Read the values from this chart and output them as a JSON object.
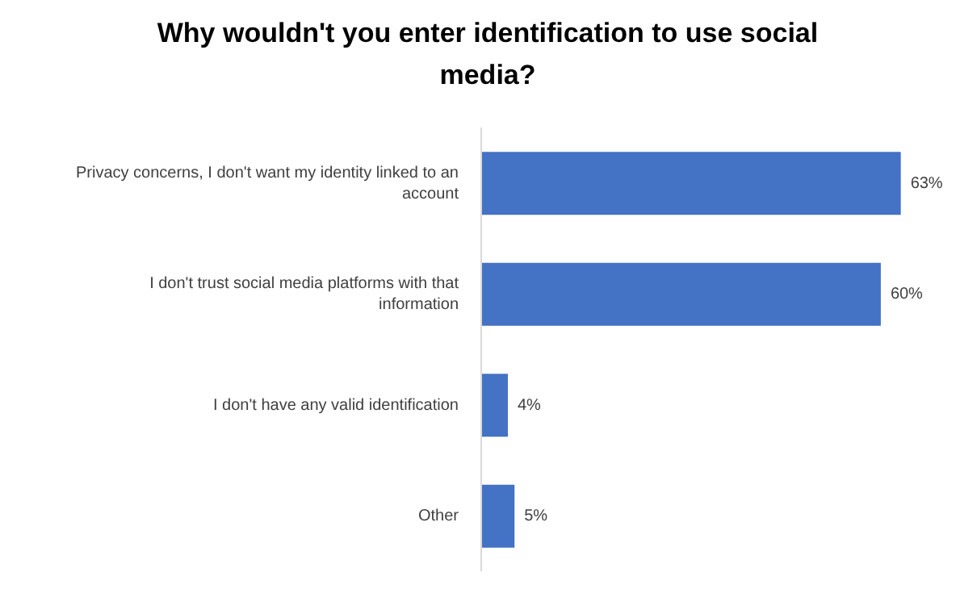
{
  "chart_data": {
    "type": "bar",
    "orientation": "horizontal",
    "title": "Why wouldn't you enter identification to use social media?",
    "categories": [
      "Privacy concerns, I don't want my identity linked to an account",
      "I don't trust social media platforms with that information",
      "I don't have any valid identification",
      "Other"
    ],
    "values": [
      63,
      60,
      4,
      5
    ],
    "value_labels": [
      "63%",
      "60%",
      "4%",
      "5%"
    ],
    "color": "#4472c4",
    "grid": false,
    "legend": false
  }
}
